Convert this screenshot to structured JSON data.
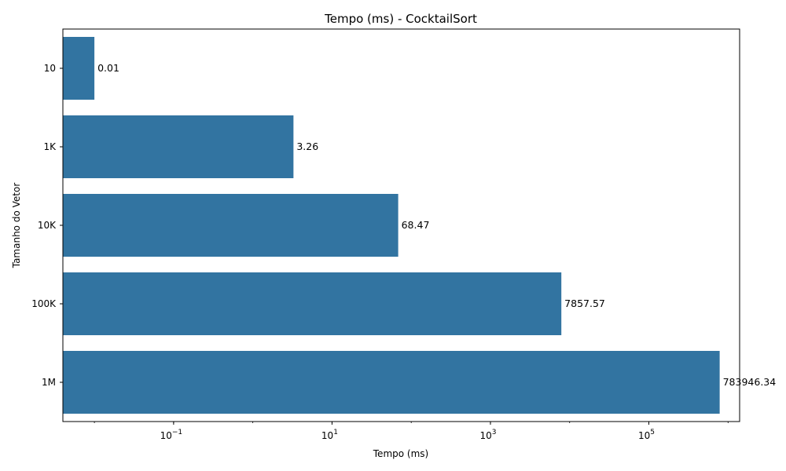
{
  "chart_data": {
    "type": "bar",
    "orientation": "horizontal",
    "title": "Tempo (ms) - CocktailSort",
    "xlabel": "Tempo (ms)",
    "ylabel": "Tamanho do Vetor",
    "x_scale": "log",
    "xlim": [
      0.004,
      1400000
    ],
    "x_ticks": [
      {
        "value": 0.1,
        "base": "10",
        "exp": "−1"
      },
      {
        "value": 10,
        "base": "10",
        "exp": "1"
      },
      {
        "value": 1000,
        "base": "10",
        "exp": "3"
      },
      {
        "value": 100000,
        "base": "10",
        "exp": "5"
      }
    ],
    "grid": false,
    "bar_color": "#3274a1",
    "categories": [
      "10",
      "1K",
      "10K",
      "100K",
      "1M"
    ],
    "values": [
      0.01,
      3.26,
      68.47,
      7857.57,
      783946.34
    ],
    "data_labels": [
      "0.01",
      "3.26",
      "68.47",
      "7857.57",
      "783946.34"
    ]
  }
}
